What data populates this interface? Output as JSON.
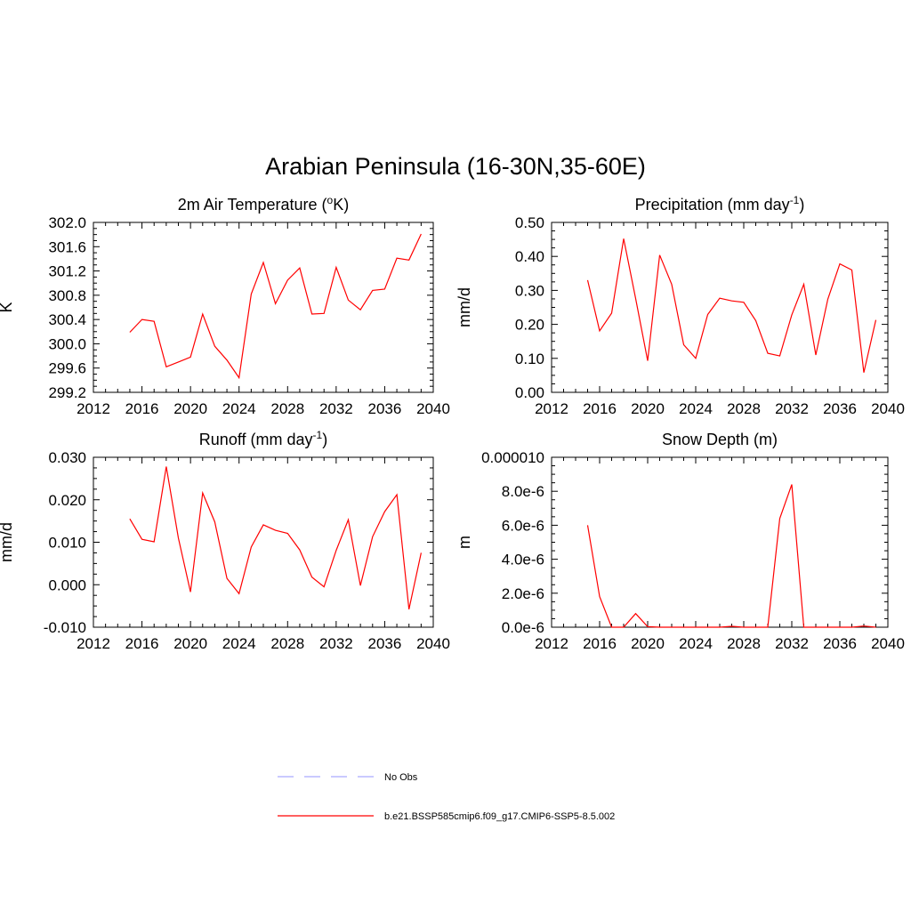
{
  "figure": {
    "title": "Arabian Peninsula (16-30N,35-60E)"
  },
  "colors": {
    "model_line": "#ff0000",
    "obs_line": "#aaaaff",
    "axis": "#000000"
  },
  "legend": {
    "items": [
      {
        "label": "No Obs",
        "style": "dashed",
        "color": "#aaaaff"
      },
      {
        "label": "b.e21.BSSP585cmip6.f09_g17.CMIP6-SSP5-8.5.002",
        "style": "solid",
        "color": "#ff0000"
      }
    ]
  },
  "chart_data": [
    {
      "type": "line",
      "title": "2m Air Temperature (",
      "title_sup": "o",
      "title_after": "K)",
      "title_tail": "",
      "ylabel": "K",
      "xlim": [
        2012,
        2040
      ],
      "ylim": [
        299.2,
        302.0
      ],
      "xticks": [
        "2012",
        "2016",
        "2020",
        "2024",
        "2028",
        "2032",
        "2036",
        "2040"
      ],
      "yticks": [
        "299.2",
        "299.6",
        "300.0",
        "300.4",
        "300.8",
        "301.2",
        "301.6",
        "302.0"
      ],
      "x": [
        2015,
        2016,
        2017,
        2018,
        2019,
        2020,
        2021,
        2022,
        2023,
        2024,
        2025,
        2026,
        2027,
        2028,
        2029,
        2030,
        2031,
        2032,
        2033,
        2034,
        2035,
        2036,
        2037,
        2038,
        2039
      ],
      "values": [
        300.19,
        300.4,
        300.37,
        299.62,
        299.7,
        299.78,
        300.49,
        299.96,
        299.73,
        299.44,
        300.82,
        301.34,
        300.66,
        301.05,
        301.25,
        300.49,
        300.5,
        301.26,
        300.72,
        300.56,
        300.88,
        300.9,
        301.41,
        301.38,
        301.81
      ]
    },
    {
      "type": "line",
      "title": "Precipitation (mm day",
      "title_sup": "-1",
      "title_after": ")",
      "ylabel": "mm/d",
      "xlim": [
        2012,
        2040
      ],
      "ylim": [
        0.0,
        0.5
      ],
      "xticks": [
        "2012",
        "2016",
        "2020",
        "2024",
        "2028",
        "2032",
        "2036",
        "2040"
      ],
      "yticks": [
        "0.00",
        "0.10",
        "0.20",
        "0.30",
        "0.40",
        "0.50"
      ],
      "x": [
        2015,
        2016,
        2017,
        2018,
        2019,
        2020,
        2021,
        2022,
        2023,
        2024,
        2025,
        2026,
        2027,
        2028,
        2029,
        2030,
        2031,
        2032,
        2033,
        2034,
        2035,
        2036,
        2037,
        2038,
        2039
      ],
      "values": [
        0.33,
        0.181,
        0.233,
        0.452,
        0.276,
        0.093,
        0.404,
        0.318,
        0.14,
        0.1,
        0.229,
        0.277,
        0.269,
        0.265,
        0.211,
        0.115,
        0.107,
        0.228,
        0.318,
        0.11,
        0.274,
        0.378,
        0.36,
        0.058,
        0.213
      ]
    },
    {
      "type": "line",
      "title": "Runoff (mm day",
      "title_sup": "-1",
      "title_after": ")",
      "ylabel": "mm/d",
      "xlim": [
        2012,
        2040
      ],
      "ylim": [
        -0.01,
        0.03
      ],
      "xticks": [
        "2012",
        "2016",
        "2020",
        "2024",
        "2028",
        "2032",
        "2036",
        "2040"
      ],
      "yticks": [
        "-0.010",
        "0.000",
        "0.010",
        "0.020",
        "0.030"
      ],
      "x": [
        2015,
        2016,
        2017,
        2018,
        2019,
        2020,
        2021,
        2022,
        2023,
        2024,
        2025,
        2026,
        2027,
        2028,
        2029,
        2030,
        2031,
        2032,
        2033,
        2034,
        2035,
        2036,
        2037,
        2038,
        2039
      ],
      "values": [
        0.0155,
        0.0107,
        0.0101,
        0.0278,
        0.011,
        -0.0017,
        0.0216,
        0.0148,
        0.0015,
        -0.0021,
        0.0089,
        0.0141,
        0.0128,
        0.0121,
        0.0082,
        0.0018,
        -0.0005,
        0.0081,
        0.0153,
        -0.0002,
        0.0113,
        0.0172,
        0.0212,
        -0.0058,
        0.0075
      ]
    },
    {
      "type": "line",
      "title": "Snow Depth (m)",
      "title_sup": "",
      "title_after": "",
      "ylabel": "m",
      "xlim": [
        2012,
        2040
      ],
      "ylim": [
        0.0,
        1e-05
      ],
      "xticks": [
        "2012",
        "2016",
        "2020",
        "2024",
        "2028",
        "2032",
        "2036",
        "2040"
      ],
      "yticks": [
        "0.0e-6",
        "2.0e-6",
        "4.0e-6",
        "6.0e-6",
        "8.0e-6",
        "0.000010"
      ],
      "x": [
        2015,
        2016,
        2017,
        2018,
        2019,
        2020,
        2021,
        2022,
        2023,
        2024,
        2025,
        2026,
        2027,
        2028,
        2029,
        2030,
        2031,
        2032,
        2033,
        2034,
        2035,
        2036,
        2037,
        2038,
        2039
      ],
      "values": [
        6e-06,
        1.8e-06,
        0.0,
        0.0,
        8e-07,
        3e-08,
        0.0,
        0.0,
        0.0,
        0.0,
        0.0,
        0.0,
        5e-08,
        0.0,
        0.0,
        0.0,
        6.4e-06,
        8.4e-06,
        0.0,
        0.0,
        0.0,
        0.0,
        0.0,
        7e-08,
        0.0
      ]
    }
  ]
}
